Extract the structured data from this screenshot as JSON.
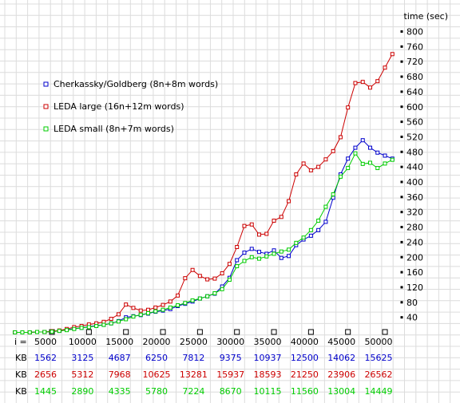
{
  "chart_data": {
    "type": "line",
    "ylabel": "time (sec)",
    "ylim": [
      0,
      840
    ],
    "xlim": [
      0,
      52000
    ],
    "y_ticks": [
      40,
      80,
      120,
      160,
      200,
      240,
      280,
      320,
      360,
      400,
      440,
      480,
      520,
      560,
      600,
      640,
      680,
      720,
      760,
      800
    ],
    "x_ticks": [
      5000,
      10000,
      15000,
      20000,
      25000,
      30000,
      35000,
      40000,
      45000,
      50000
    ],
    "x_prefix": "i =",
    "grid": true,
    "legend_position": "top-left",
    "series": [
      {
        "name": "Cherkassky/Goldberg (8n+8m  words)",
        "color": "#0000cc",
        "points": [
          [
            0,
            0
          ],
          [
            1000,
            0
          ],
          [
            2000,
            0
          ],
          [
            3000,
            1
          ],
          [
            4000,
            1
          ],
          [
            5000,
            2
          ],
          [
            6000,
            4
          ],
          [
            7000,
            7
          ],
          [
            8000,
            10
          ],
          [
            9000,
            12
          ],
          [
            10000,
            15
          ],
          [
            11000,
            18
          ],
          [
            12000,
            20
          ],
          [
            13000,
            24
          ],
          [
            14000,
            30
          ],
          [
            15000,
            40
          ],
          [
            16000,
            43
          ],
          [
            17000,
            46
          ],
          [
            18000,
            50
          ],
          [
            19000,
            55
          ],
          [
            20000,
            58
          ],
          [
            21000,
            62
          ],
          [
            22000,
            70
          ],
          [
            23000,
            76
          ],
          [
            24000,
            82
          ],
          [
            25000,
            90
          ],
          [
            26000,
            96
          ],
          [
            27000,
            103
          ],
          [
            28000,
            122
          ],
          [
            29000,
            145
          ],
          [
            30000,
            192
          ],
          [
            31000,
            212
          ],
          [
            32000,
            222
          ],
          [
            33000,
            214
          ],
          [
            34000,
            209
          ],
          [
            35000,
            218
          ],
          [
            36000,
            198
          ],
          [
            37000,
            203
          ],
          [
            38000,
            232
          ],
          [
            39000,
            247
          ],
          [
            40000,
            257
          ],
          [
            41000,
            272
          ],
          [
            42000,
            294
          ],
          [
            43000,
            358
          ],
          [
            44000,
            420
          ],
          [
            45000,
            462
          ],
          [
            46000,
            491
          ],
          [
            47000,
            511
          ],
          [
            48000,
            491
          ],
          [
            49000,
            478
          ],
          [
            50000,
            470
          ],
          [
            51000,
            462
          ]
        ]
      },
      {
        "name": "LEDA large (16n+12m  words)",
        "color": "#cc0000",
        "points": [
          [
            0,
            0
          ],
          [
            1000,
            0
          ],
          [
            2000,
            0
          ],
          [
            3000,
            1
          ],
          [
            4000,
            1
          ],
          [
            5000,
            3
          ],
          [
            6000,
            5
          ],
          [
            7000,
            9
          ],
          [
            8000,
            14
          ],
          [
            9000,
            17
          ],
          [
            10000,
            21
          ],
          [
            11000,
            24
          ],
          [
            12000,
            28
          ],
          [
            13000,
            36
          ],
          [
            14000,
            48
          ],
          [
            15000,
            74
          ],
          [
            16000,
            65
          ],
          [
            17000,
            58
          ],
          [
            18000,
            60
          ],
          [
            19000,
            66
          ],
          [
            20000,
            73
          ],
          [
            21000,
            82
          ],
          [
            22000,
            98
          ],
          [
            23000,
            144
          ],
          [
            24000,
            166
          ],
          [
            25000,
            150
          ],
          [
            26000,
            141
          ],
          [
            27000,
            143
          ],
          [
            28000,
            157
          ],
          [
            29000,
            182
          ],
          [
            30000,
            227
          ],
          [
            31000,
            283
          ],
          [
            32000,
            287
          ],
          [
            33000,
            260
          ],
          [
            34000,
            262
          ],
          [
            35000,
            297
          ],
          [
            36000,
            307
          ],
          [
            37000,
            349
          ],
          [
            38000,
            420
          ],
          [
            39000,
            449
          ],
          [
            40000,
            431
          ],
          [
            41000,
            440
          ],
          [
            42000,
            460
          ],
          [
            43000,
            482
          ],
          [
            44000,
            519
          ],
          [
            45000,
            598
          ],
          [
            46000,
            663
          ],
          [
            47000,
            666
          ],
          [
            48000,
            651
          ],
          [
            49000,
            668
          ],
          [
            50000,
            704
          ],
          [
            51000,
            740
          ]
        ]
      },
      {
        "name": "LEDA small (8n+7m  words)",
        "color": "#00cc00",
        "points": [
          [
            0,
            0
          ],
          [
            1000,
            0
          ],
          [
            2000,
            0
          ],
          [
            3000,
            1
          ],
          [
            4000,
            1
          ],
          [
            5000,
            2
          ],
          [
            6000,
            4
          ],
          [
            7000,
            6
          ],
          [
            8000,
            9
          ],
          [
            9000,
            12
          ],
          [
            10000,
            14
          ],
          [
            11000,
            17
          ],
          [
            12000,
            20
          ],
          [
            13000,
            24
          ],
          [
            14000,
            29
          ],
          [
            15000,
            35
          ],
          [
            16000,
            42
          ],
          [
            17000,
            47
          ],
          [
            18000,
            51
          ],
          [
            19000,
            56
          ],
          [
            20000,
            60
          ],
          [
            21000,
            66
          ],
          [
            22000,
            72
          ],
          [
            23000,
            78
          ],
          [
            24000,
            85
          ],
          [
            25000,
            90
          ],
          [
            26000,
            96
          ],
          [
            27000,
            104
          ],
          [
            28000,
            115
          ],
          [
            29000,
            140
          ],
          [
            30000,
            176
          ],
          [
            31000,
            190
          ],
          [
            32000,
            200
          ],
          [
            33000,
            196
          ],
          [
            34000,
            202
          ],
          [
            35000,
            209
          ],
          [
            36000,
            215
          ],
          [
            37000,
            220
          ],
          [
            38000,
            238
          ],
          [
            39000,
            252
          ],
          [
            40000,
            272
          ],
          [
            41000,
            297
          ],
          [
            42000,
            334
          ],
          [
            43000,
            367
          ],
          [
            44000,
            414
          ],
          [
            45000,
            437
          ],
          [
            46000,
            476
          ],
          [
            47000,
            448
          ],
          [
            48000,
            451
          ],
          [
            49000,
            437
          ],
          [
            50000,
            449
          ],
          [
            51000,
            459
          ]
        ]
      }
    ],
    "kb_rows": [
      {
        "prefix": "KB",
        "color": "#0000cc",
        "values": [
          "1562",
          "3125",
          "4687",
          "6250",
          "7812",
          "9375",
          "10937",
          "12500",
          "14062",
          "15625"
        ]
      },
      {
        "prefix": "KB",
        "color": "#cc0000",
        "values": [
          "2656",
          "5312",
          "7968",
          "10625",
          "13281",
          "15937",
          "18593",
          "21250",
          "23906",
          "26562"
        ]
      },
      {
        "prefix": "KB",
        "color": "#00cc00",
        "values": [
          "1445",
          "2890",
          "4335",
          "5780",
          "7224",
          "8670",
          "10115",
          "11560",
          "13004",
          "14449"
        ]
      }
    ]
  }
}
